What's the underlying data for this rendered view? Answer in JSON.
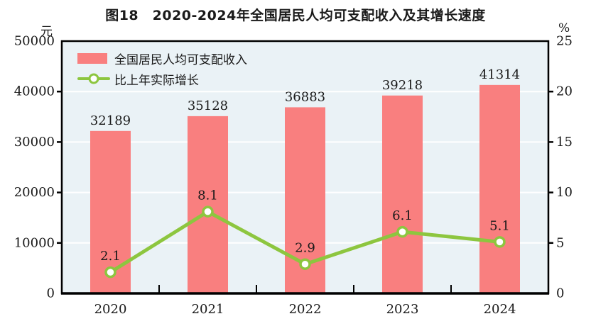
{
  "title": "图18　2020-2024年全国居民人均可支配收入及其增长速度",
  "left_axis": {
    "unit": "元",
    "ticks": [
      0,
      10000,
      20000,
      30000,
      40000,
      50000
    ]
  },
  "right_axis": {
    "unit": "%",
    "ticks": [
      0,
      5,
      10,
      15,
      20,
      25
    ]
  },
  "legend": [
    {
      "type": "bar",
      "label": "全国居民人均可支配收入"
    },
    {
      "type": "line",
      "label": "比上年实际增长"
    }
  ],
  "colors": {
    "bar": "#f97f7f",
    "line": "#8dc63f",
    "marker_fill": "#ffffff",
    "plot_bg": "#eaf2f6",
    "grid": "#ffffff",
    "axis": "#000000",
    "text": "#1a1a1a"
  },
  "chart_data": {
    "type": "bar+line",
    "title": "图18　2020-2024年全国居民人均可支配收入及其增长速度",
    "categories": [
      "2020",
      "2021",
      "2022",
      "2023",
      "2024"
    ],
    "series": [
      {
        "name": "全国居民人均可支配收入",
        "type": "bar",
        "axis": "left",
        "values": [
          32189,
          35128,
          36883,
          39218,
          41314
        ]
      },
      {
        "name": "比上年实际增长",
        "type": "line",
        "axis": "right",
        "values": [
          2.1,
          8.1,
          2.9,
          6.1,
          5.1
        ]
      }
    ],
    "left_ylabel": "元",
    "right_ylabel": "%",
    "left_ylim": [
      0,
      50000
    ],
    "right_ylim": [
      0,
      25
    ],
    "grid": true,
    "legend_position": "top-left-inside"
  }
}
